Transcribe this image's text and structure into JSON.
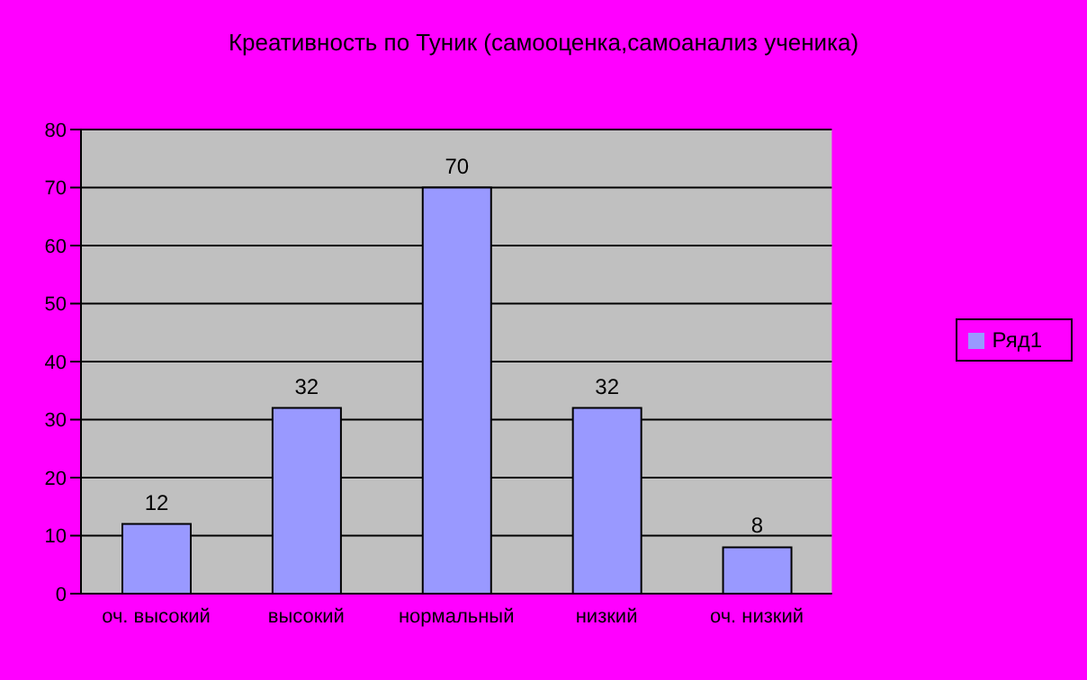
{
  "chart_data": {
    "type": "bar",
    "title": "Креативность по Туник (самооценка,самоанализ ученика)",
    "categories": [
      "оч. высокий",
      "высокий",
      "нормальный",
      "низкий",
      "оч. низкий"
    ],
    "series": [
      {
        "name": "Ряд1",
        "color": "#9999ff",
        "values": [
          12,
          32,
          70,
          32,
          8
        ]
      }
    ],
    "ylim": [
      0,
      80
    ],
    "yticks": [
      0,
      10,
      20,
      30,
      40,
      50,
      60,
      70,
      80
    ],
    "grid": "y",
    "legend": "right",
    "data_labels": true
  }
}
